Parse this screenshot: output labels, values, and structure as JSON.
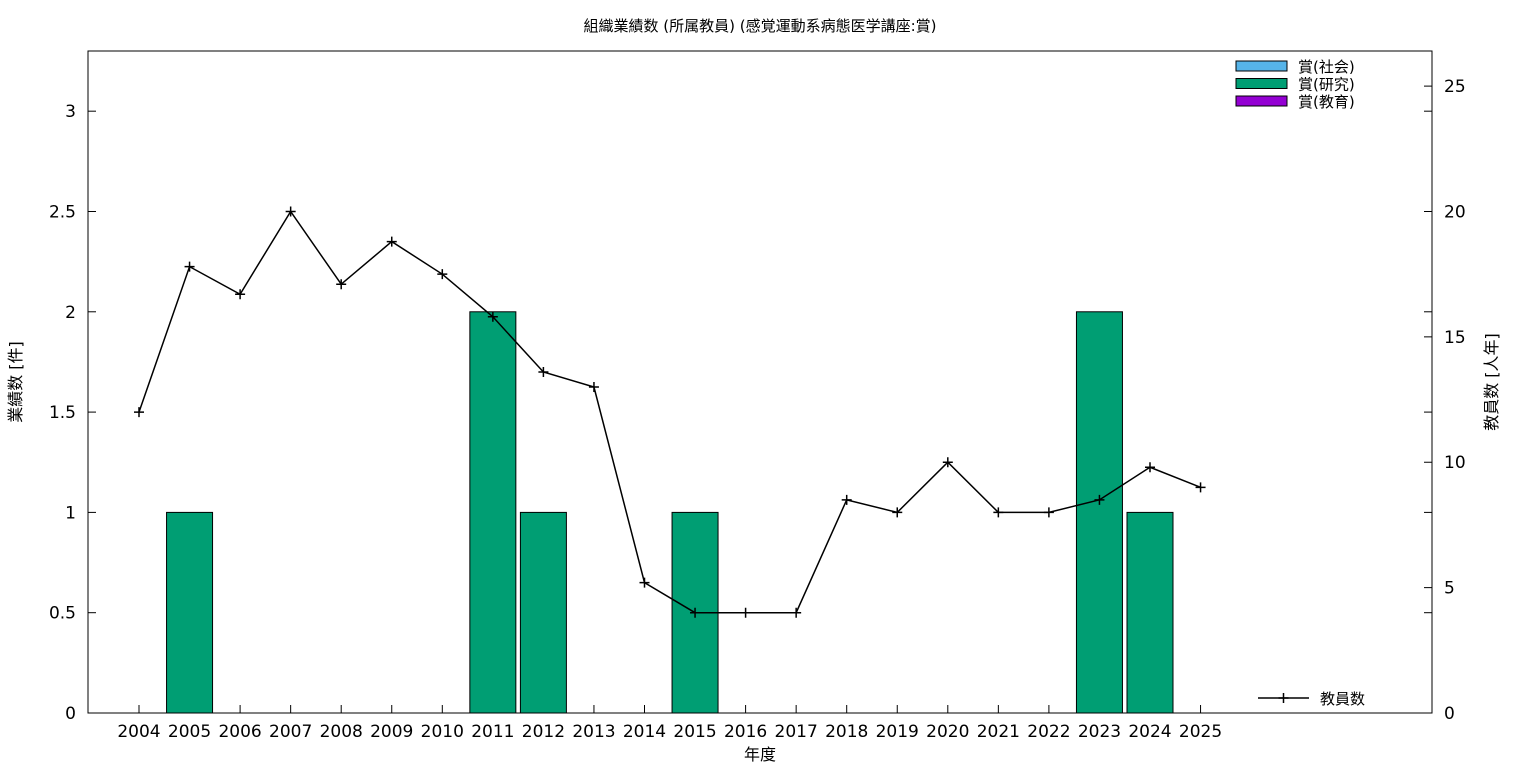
{
  "chart_data": {
    "type": "bar",
    "title": "組織業績数 (所属教員) (感覚運動系病態医学講座:賞)",
    "xlabel": "年度",
    "ylabel": "業績数 [件]",
    "y2label": "教員数 [人年]",
    "categories": [
      "2004",
      "2005",
      "2006",
      "2007",
      "2008",
      "2009",
      "2010",
      "2011",
      "2012",
      "2013",
      "2014",
      "2015",
      "2016",
      "2017",
      "2018",
      "2019",
      "2020",
      "2021",
      "2022",
      "2023",
      "2024",
      "2025"
    ],
    "ylim": [
      0,
      3.3
    ],
    "y2lim": [
      0,
      26.4
    ],
    "yticks": [
      "0",
      "0.5",
      "1",
      "1.5",
      "2",
      "2.5",
      "3"
    ],
    "y2ticks": [
      "0",
      "5",
      "10",
      "15",
      "20",
      "25"
    ],
    "legend_position": "top-right",
    "series": [
      {
        "name": "賞(社会)",
        "kind": "bar",
        "color": "#56b4e9",
        "values": [
          0,
          0,
          0,
          0,
          0,
          0,
          0,
          0,
          0,
          0,
          0,
          0,
          0,
          0,
          0,
          0,
          0,
          0,
          0,
          0,
          0,
          0
        ]
      },
      {
        "name": "賞(研究)",
        "kind": "bar",
        "color": "#009e73",
        "values": [
          0,
          1,
          0,
          0,
          0,
          0,
          0,
          2,
          1,
          0,
          0,
          1,
          0,
          0,
          0,
          0,
          0,
          0,
          0,
          2,
          1,
          0
        ]
      },
      {
        "name": "賞(教育)",
        "kind": "bar",
        "color": "#9400d3",
        "values": [
          0,
          0,
          0,
          0,
          0,
          0,
          0,
          0,
          0,
          0,
          0,
          0,
          0,
          0,
          0,
          0,
          0,
          0,
          0,
          0,
          0,
          0
        ]
      },
      {
        "name": "教員数",
        "kind": "line",
        "axis": "right",
        "color": "#000000",
        "values": [
          12.0,
          17.8,
          16.7,
          20.0,
          17.1,
          18.8,
          17.5,
          15.8,
          13.6,
          13.0,
          5.2,
          4.0,
          4.0,
          4.0,
          8.5,
          8.0,
          10.0,
          8.0,
          8.0,
          8.5,
          9.8,
          9.0
        ]
      }
    ]
  }
}
